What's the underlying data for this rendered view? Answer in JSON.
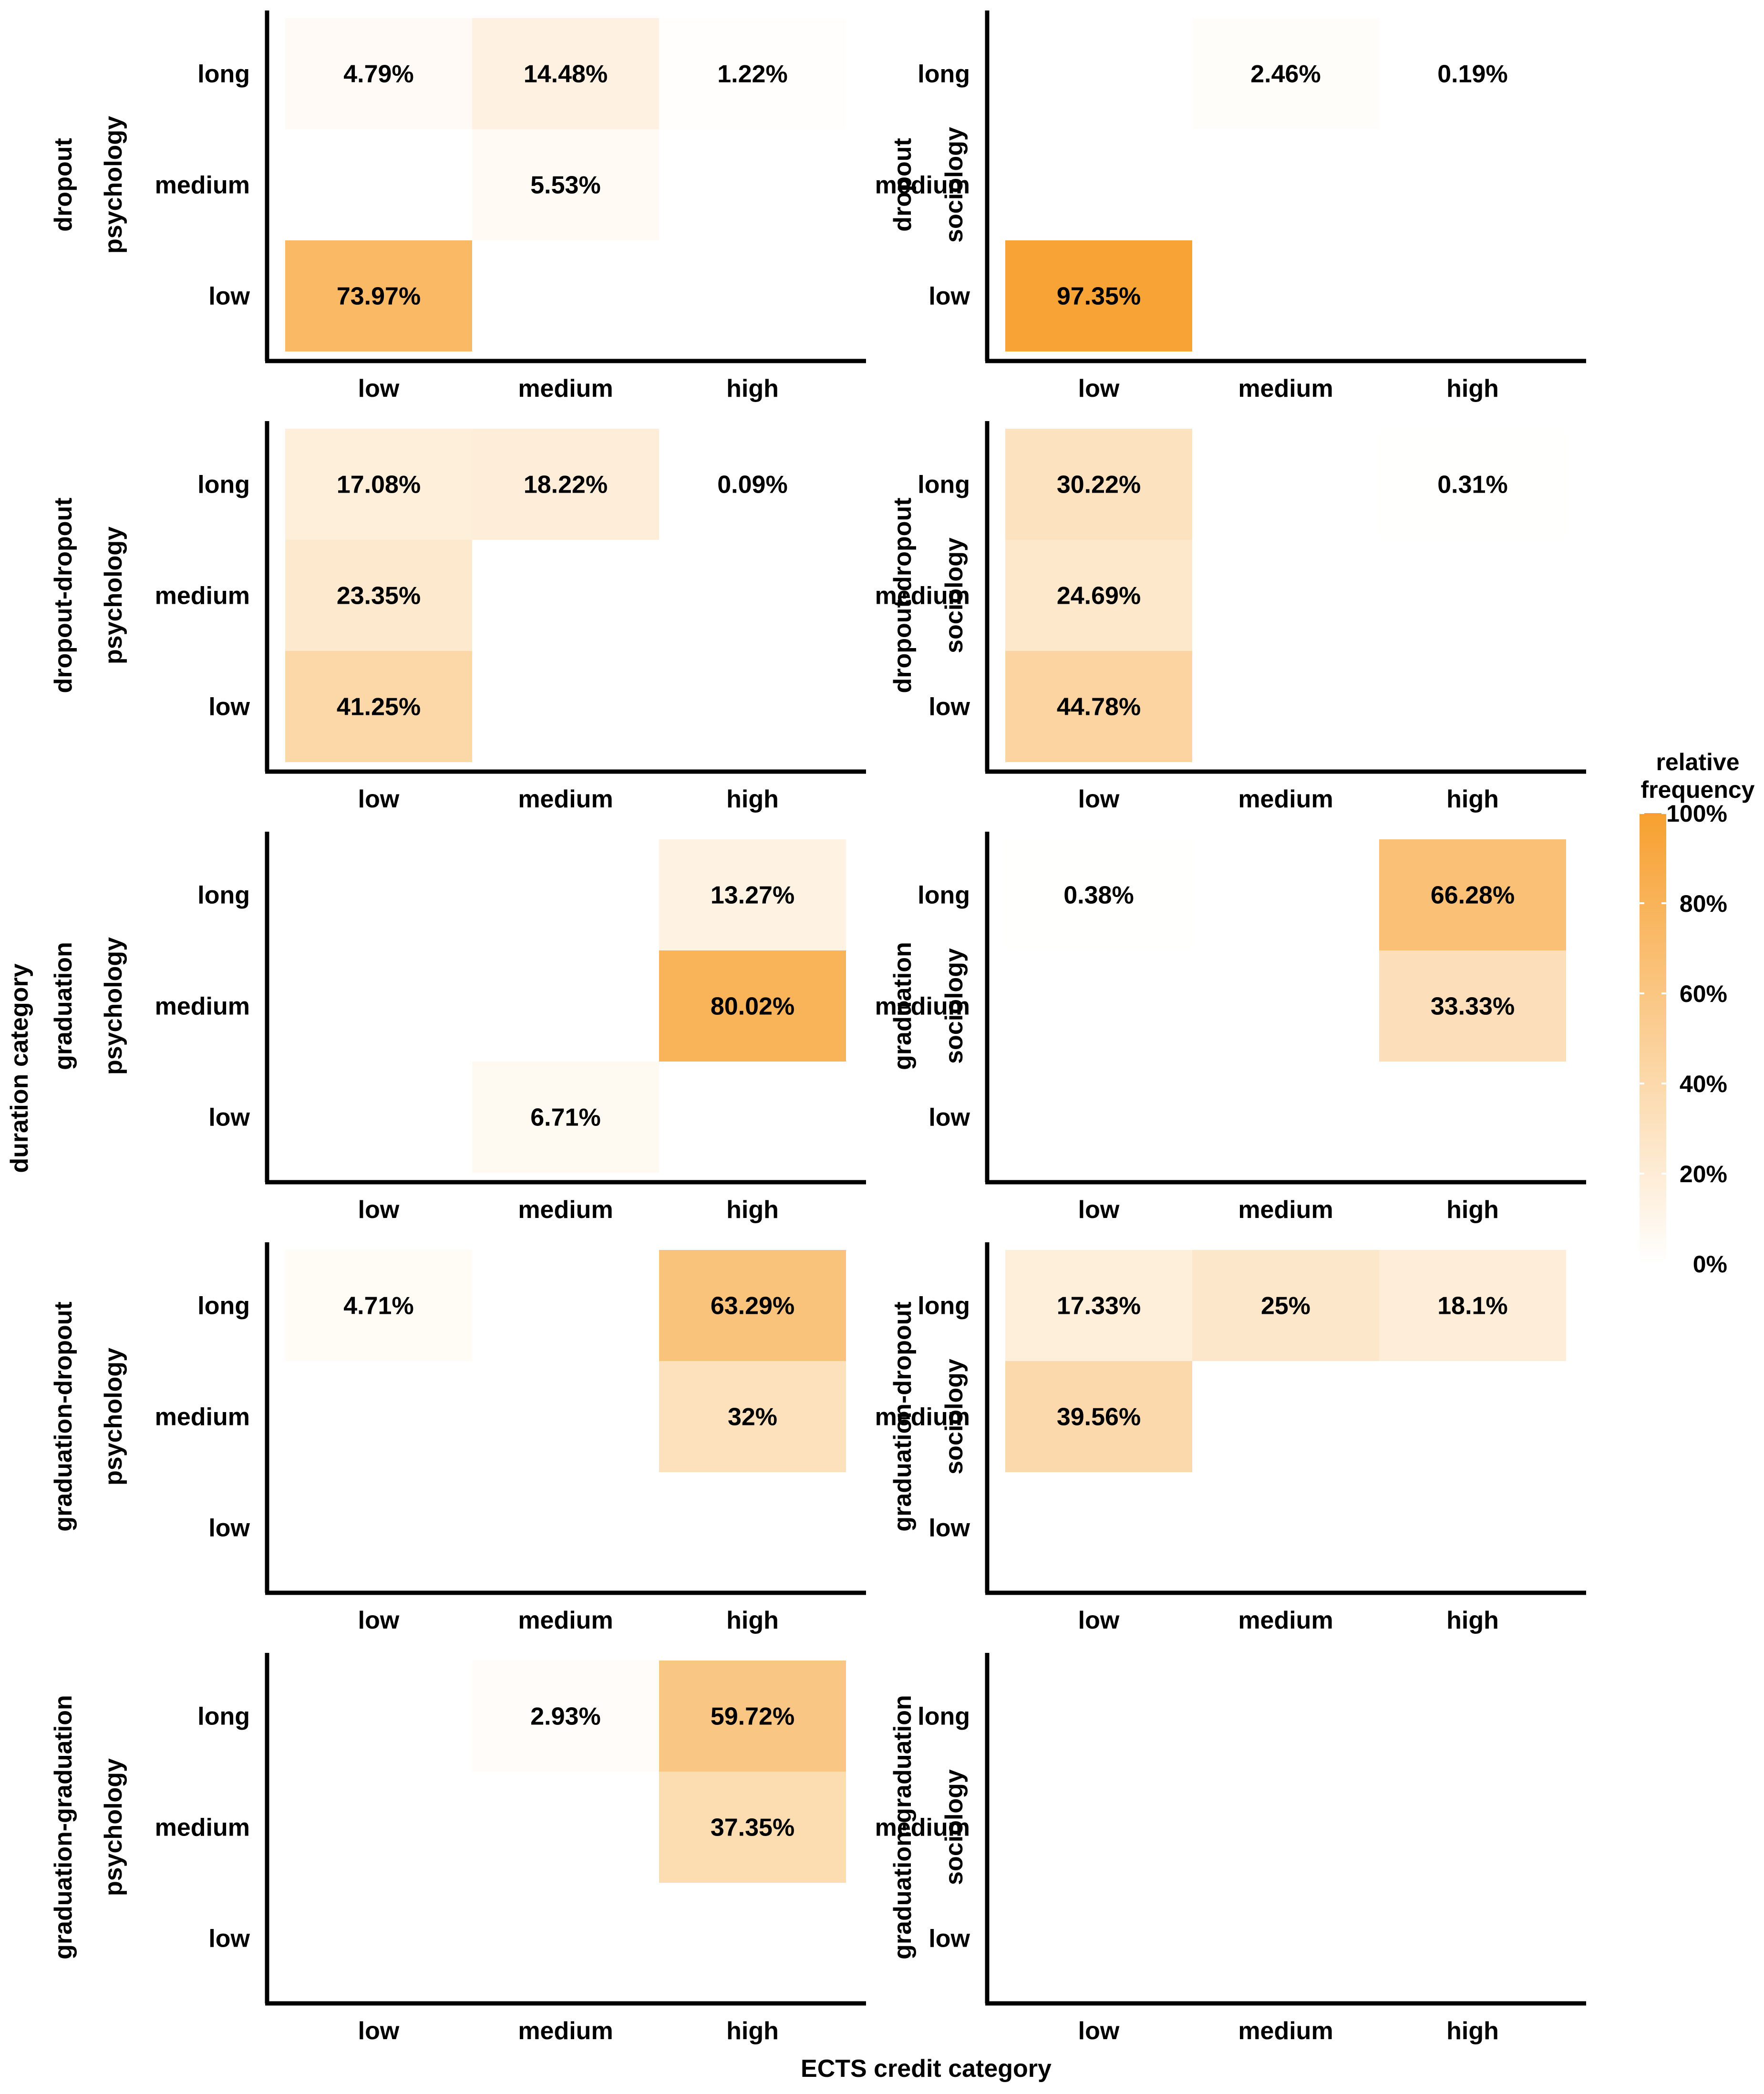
{
  "chart_data": {
    "type": "heatmap",
    "xlabel": "ECTS credit category",
    "ylabel": "duration category",
    "x_categories": [
      "low",
      "medium",
      "high"
    ],
    "y_categories": [
      "low",
      "medium",
      "long"
    ],
    "legend": {
      "title_lines": [
        "relative",
        "frequency"
      ],
      "ticks": [
        "0%",
        "20%",
        "40%",
        "60%",
        "80%",
        "100%"
      ],
      "tick_values": [
        0,
        20,
        40,
        60,
        80,
        100
      ],
      "color_low": "#ffffff",
      "color_high": "#f7a02f"
    },
    "panels": [
      {
        "row": "dropout",
        "col": "psychology",
        "cells": [
          {
            "x": "low",
            "y": "long",
            "value": 4.79,
            "label": "4.79%"
          },
          {
            "x": "medium",
            "y": "long",
            "value": 14.48,
            "label": "14.48%"
          },
          {
            "x": "high",
            "y": "long",
            "value": 1.22,
            "label": "1.22%"
          },
          {
            "x": "medium",
            "y": "medium",
            "value": 5.53,
            "label": "5.53%"
          },
          {
            "x": "low",
            "y": "low",
            "value": 73.97,
            "label": "73.97%"
          }
        ]
      },
      {
        "row": "dropout",
        "col": "sociology",
        "cells": [
          {
            "x": "medium",
            "y": "long",
            "value": 2.46,
            "label": "2.46%"
          },
          {
            "x": "high",
            "y": "long",
            "value": 0.19,
            "label": "0.19%"
          },
          {
            "x": "low",
            "y": "low",
            "value": 97.35,
            "label": "97.35%"
          }
        ]
      },
      {
        "row": "dropout-dropout",
        "col": "psychology",
        "cells": [
          {
            "x": "low",
            "y": "long",
            "value": 17.08,
            "label": "17.08%"
          },
          {
            "x": "medium",
            "y": "long",
            "value": 18.22,
            "label": "18.22%"
          },
          {
            "x": "high",
            "y": "long",
            "value": 0.09,
            "label": "0.09%"
          },
          {
            "x": "low",
            "y": "medium",
            "value": 23.35,
            "label": "23.35%"
          },
          {
            "x": "low",
            "y": "low",
            "value": 41.25,
            "label": "41.25%"
          }
        ]
      },
      {
        "row": "dropout-dropout",
        "col": "sociology",
        "cells": [
          {
            "x": "low",
            "y": "long",
            "value": 30.22,
            "label": "30.22%"
          },
          {
            "x": "high",
            "y": "long",
            "value": 0.31,
            "label": "0.31%"
          },
          {
            "x": "low",
            "y": "medium",
            "value": 24.69,
            "label": "24.69%"
          },
          {
            "x": "low",
            "y": "low",
            "value": 44.78,
            "label": "44.78%"
          }
        ]
      },
      {
        "row": "graduation",
        "col": "psychology",
        "cells": [
          {
            "x": "high",
            "y": "long",
            "value": 13.27,
            "label": "13.27%"
          },
          {
            "x": "high",
            "y": "medium",
            "value": 80.02,
            "label": "80.02%"
          },
          {
            "x": "medium",
            "y": "low",
            "value": 6.71,
            "label": "6.71%"
          }
        ]
      },
      {
        "row": "graduation",
        "col": "sociology",
        "cells": [
          {
            "x": "low",
            "y": "long",
            "value": 0.38,
            "label": "0.38%"
          },
          {
            "x": "high",
            "y": "long",
            "value": 66.28,
            "label": "66.28%"
          },
          {
            "x": "high",
            "y": "medium",
            "value": 33.33,
            "label": "33.33%"
          }
        ]
      },
      {
        "row": "graduation-dropout",
        "col": "psychology",
        "cells": [
          {
            "x": "low",
            "y": "long",
            "value": 4.71,
            "label": "4.71%"
          },
          {
            "x": "high",
            "y": "long",
            "value": 63.29,
            "label": "63.29%"
          },
          {
            "x": "high",
            "y": "medium",
            "value": 32,
            "label": "32%"
          }
        ]
      },
      {
        "row": "graduation-dropout",
        "col": "sociology",
        "cells": [
          {
            "x": "low",
            "y": "long",
            "value": 17.33,
            "label": "17.33%"
          },
          {
            "x": "medium",
            "y": "long",
            "value": 25,
            "label": "25%"
          },
          {
            "x": "high",
            "y": "long",
            "value": 18.1,
            "label": "18.1%"
          },
          {
            "x": "low",
            "y": "medium",
            "value": 39.56,
            "label": "39.56%"
          }
        ]
      },
      {
        "row": "graduation-graduation",
        "col": "psychology",
        "cells": [
          {
            "x": "medium",
            "y": "long",
            "value": 2.93,
            "label": "2.93%"
          },
          {
            "x": "high",
            "y": "long",
            "value": 59.72,
            "label": "59.72%"
          },
          {
            "x": "high",
            "y": "medium",
            "value": 37.35,
            "label": "37.35%"
          }
        ]
      },
      {
        "row": "graduation-graduation",
        "col": "sociology",
        "cells": []
      }
    ]
  }
}
